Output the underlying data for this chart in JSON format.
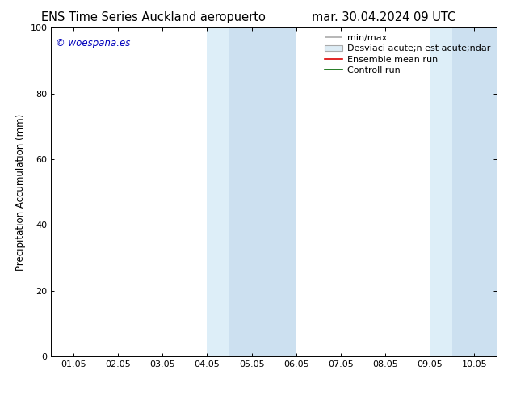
{
  "title_left": "ENS Time Series Auckland aeropuerto",
  "title_right": "mar. 30.04.2024 09 UTC",
  "ylabel": "Precipitation Accumulation (mm)",
  "watermark": "© woespana.es",
  "watermark_color": "#0000bb",
  "ylim": [
    0,
    100
  ],
  "xtick_positions": [
    0,
    1,
    2,
    3,
    4,
    5,
    6,
    7,
    8,
    9
  ],
  "xtick_labels": [
    "01.05",
    "02.05",
    "03.05",
    "04.05",
    "05.05",
    "06.05",
    "07.05",
    "08.05",
    "09.05",
    "10.05"
  ],
  "ytick_labels": [
    0,
    20,
    40,
    60,
    80,
    100
  ],
  "background_color": "#ffffff",
  "plot_bg_color": "#ffffff",
  "shaded_bands": [
    {
      "xmin": 3.0,
      "xmax": 3.5,
      "color": "#ddeef8"
    },
    {
      "xmin": 3.5,
      "xmax": 5.0,
      "color": "#cce0f0"
    },
    {
      "xmin": 8.0,
      "xmax": 8.5,
      "color": "#ddeef8"
    },
    {
      "xmin": 8.5,
      "xmax": 9.5,
      "color": "#cce0f0"
    }
  ],
  "legend_entries": [
    {
      "label": "min/max",
      "color": "#aaaaaa",
      "lw": 1.2,
      "type": "line_with_caps"
    },
    {
      "label": "Desviaci acute;n est acute;ndar",
      "color": "#ddecf5",
      "border": "#aaaaaa",
      "type": "rect"
    },
    {
      "label": "Ensemble mean run",
      "color": "#dd0000",
      "lw": 1.2,
      "type": "line"
    },
    {
      "label": "Controll run",
      "color": "#006600",
      "lw": 1.2,
      "type": "line"
    }
  ],
  "title_fontsize": 10.5,
  "axis_fontsize": 8.5,
  "tick_fontsize": 8,
  "legend_fontsize": 8,
  "watermark_fontsize": 8.5
}
